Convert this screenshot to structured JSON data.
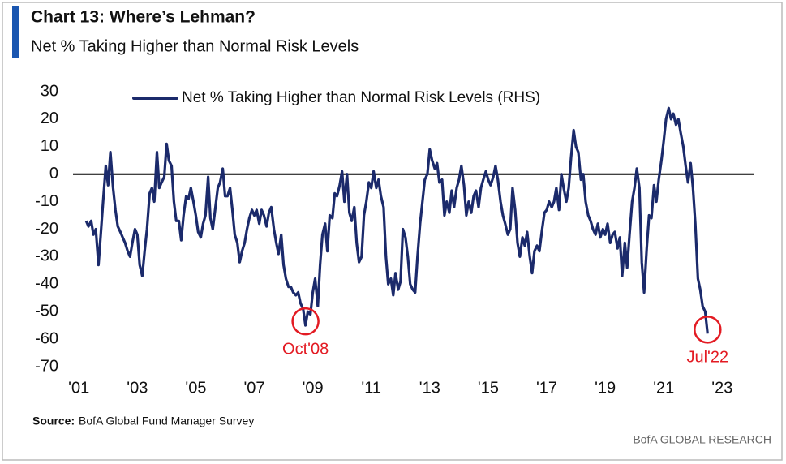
{
  "chart_data": {
    "type": "line",
    "title": "Chart 13: Where’s Lehman?",
    "subtitle": "Net % Taking Higher than Normal Risk Levels",
    "source_label": "Source:",
    "source": "BofA Global Fund Manager Survey",
    "credit": "BofA GLOBAL RESEARCH",
    "xlim": [
      2000.8,
      2024.1
    ],
    "ylim": [
      -70,
      30
    ],
    "yticks": [
      30,
      20,
      10,
      0,
      -10,
      -20,
      -30,
      -40,
      -50,
      -60,
      -70
    ],
    "xticks": [
      {
        "value": 2001,
        "label": "'01"
      },
      {
        "value": 2003,
        "label": "'03"
      },
      {
        "value": 2005,
        "label": "'05"
      },
      {
        "value": 2007,
        "label": "'07"
      },
      {
        "value": 2009,
        "label": "'09"
      },
      {
        "value": 2011,
        "label": "'11"
      },
      {
        "value": 2013,
        "label": "'13"
      },
      {
        "value": 2015,
        "label": "'15"
      },
      {
        "value": 2017,
        "label": "'17"
      },
      {
        "value": 2019,
        "label": "'19"
      },
      {
        "value": 2021,
        "label": "'21"
      },
      {
        "value": 2023,
        "label": "'23"
      }
    ],
    "reference_line": 0,
    "legend": "top-left",
    "x": [
      2001.25,
      2001.33,
      2001.42,
      2001.5,
      2001.58,
      2001.67,
      2001.75,
      2001.83,
      2001.92,
      2002,
      2002.08,
      2002.17,
      2002.25,
      2002.33,
      2002.42,
      2002.5,
      2002.58,
      2002.67,
      2002.75,
      2002.83,
      2002.92,
      2003,
      2003.08,
      2003.17,
      2003.25,
      2003.33,
      2003.42,
      2003.5,
      2003.58,
      2003.67,
      2003.75,
      2003.83,
      2003.92,
      2004,
      2004.08,
      2004.17,
      2004.25,
      2004.33,
      2004.42,
      2004.5,
      2004.58,
      2004.67,
      2004.75,
      2004.83,
      2004.92,
      2005,
      2005.08,
      2005.17,
      2005.25,
      2005.33,
      2005.42,
      2005.5,
      2005.58,
      2005.67,
      2005.75,
      2005.83,
      2005.92,
      2006,
      2006.08,
      2006.17,
      2006.25,
      2006.33,
      2006.42,
      2006.5,
      2006.58,
      2006.67,
      2006.75,
      2006.83,
      2006.92,
      2007,
      2007.08,
      2007.17,
      2007.25,
      2007.33,
      2007.42,
      2007.5,
      2007.58,
      2007.67,
      2007.75,
      2007.83,
      2007.92,
      2008,
      2008.08,
      2008.17,
      2008.25,
      2008.33,
      2008.42,
      2008.5,
      2008.58,
      2008.67,
      2008.75,
      2008.83,
      2008.92,
      2009,
      2009.08,
      2009.17,
      2009.25,
      2009.33,
      2009.42,
      2009.5,
      2009.58,
      2009.67,
      2009.75,
      2009.83,
      2009.92,
      2010,
      2010.08,
      2010.17,
      2010.25,
      2010.33,
      2010.42,
      2010.5,
      2010.58,
      2010.67,
      2010.75,
      2010.83,
      2010.92,
      2011,
      2011.08,
      2011.17,
      2011.25,
      2011.33,
      2011.42,
      2011.5,
      2011.58,
      2011.67,
      2011.75,
      2011.83,
      2011.92,
      2012,
      2012.08,
      2012.17,
      2012.25,
      2012.33,
      2012.42,
      2012.5,
      2012.58,
      2012.67,
      2012.75,
      2012.83,
      2012.92,
      2013,
      2013.08,
      2013.17,
      2013.25,
      2013.33,
      2013.42,
      2013.5,
      2013.58,
      2013.67,
      2013.75,
      2013.83,
      2013.92,
      2014,
      2014.08,
      2014.17,
      2014.25,
      2014.33,
      2014.42,
      2014.5,
      2014.58,
      2014.67,
      2014.75,
      2014.83,
      2014.92,
      2015,
      2015.08,
      2015.17,
      2015.25,
      2015.33,
      2015.42,
      2015.5,
      2015.58,
      2015.67,
      2015.75,
      2015.83,
      2015.92,
      2016,
      2016.08,
      2016.17,
      2016.25,
      2016.33,
      2016.42,
      2016.5,
      2016.58,
      2016.67,
      2016.75,
      2016.83,
      2016.92,
      2017,
      2017.08,
      2017.17,
      2017.25,
      2017.33,
      2017.42,
      2017.5,
      2017.58,
      2017.67,
      2017.75,
      2017.83,
      2017.92,
      2018,
      2018.08,
      2018.17,
      2018.25,
      2018.33,
      2018.42,
      2018.5,
      2018.58,
      2018.67,
      2018.75,
      2018.83,
      2018.92,
      2019,
      2019.08,
      2019.17,
      2019.25,
      2019.33,
      2019.42,
      2019.5,
      2019.58,
      2019.67,
      2019.75,
      2019.83,
      2019.92,
      2020,
      2020.08,
      2020.17,
      2020.25,
      2020.33,
      2020.42,
      2020.5,
      2020.58,
      2020.67,
      2020.75,
      2020.83,
      2020.92,
      2021,
      2021.08,
      2021.17,
      2021.25,
      2021.33,
      2021.42,
      2021.5,
      2021.58,
      2021.67,
      2021.75,
      2021.83,
      2021.92,
      2022,
      2022.08,
      2022.17,
      2022.25,
      2022.33,
      2022.42,
      2022.5
    ],
    "series": [
      {
        "name": "Net % Taking Higher than Normal Risk Levels (RHS)",
        "color": "#1b2a6b",
        "values": [
          -17,
          -19,
          -17,
          -22,
          -20,
          -33,
          -22,
          -10,
          3,
          -4,
          8,
          -5,
          -13,
          -19,
          -21,
          -23,
          -25,
          -28,
          -30,
          -25,
          -20,
          -22,
          -33,
          -37,
          -28,
          -20,
          -7,
          -5,
          -10,
          8,
          -5,
          -3,
          -1,
          11,
          5,
          3,
          -10,
          -17,
          -17,
          -24,
          -15,
          -8,
          -9,
          -5,
          -10,
          -15,
          -21,
          -23,
          -18,
          -15,
          -1,
          -16,
          -20,
          -12,
          -5,
          -3,
          2,
          -8,
          -8,
          -5,
          -13,
          -22,
          -25,
          -32,
          -28,
          -25,
          -20,
          -16,
          -13,
          -15,
          -13,
          -18,
          -13,
          -15,
          -19,
          -14,
          -12,
          -20,
          -25,
          -29,
          -22,
          -33,
          -38,
          -41,
          -41,
          -43,
          -44,
          -43,
          -47,
          -49,
          -55,
          -50,
          -51,
          -43,
          -38,
          -48,
          -33,
          -22,
          -18,
          -28,
          -15,
          -16,
          -7,
          -8,
          -4,
          1,
          -10,
          0,
          -14,
          -17,
          -12,
          -25,
          -32,
          -30,
          -15,
          -10,
          -3,
          -5,
          1,
          -5,
          -2,
          -8,
          -12,
          -30,
          -40,
          -38,
          -44,
          -36,
          -42,
          -39,
          -20,
          -23,
          -30,
          -40,
          -42,
          -43,
          -30,
          -18,
          -10,
          -2,
          0,
          9,
          5,
          2,
          4,
          -3,
          -2,
          -15,
          -10,
          -14,
          -6,
          -12,
          -5,
          -2,
          3,
          -4,
          -15,
          -10,
          -14,
          -8,
          -6,
          -12,
          -5,
          -2,
          1,
          -2,
          -4,
          -1,
          3,
          -2,
          -10,
          -15,
          -18,
          -22,
          -20,
          -5,
          -13,
          -25,
          -30,
          -23,
          -26,
          -21,
          -30,
          -36,
          -28,
          -26,
          -28,
          -21,
          -14,
          -13,
          -10,
          -12,
          -10,
          -5,
          -13,
          0,
          -5,
          -10,
          -5,
          6,
          16,
          10,
          8,
          -2,
          0,
          -10,
          -15,
          -17,
          -20,
          -22,
          -18,
          -23,
          -20,
          -22,
          -18,
          -25,
          -22,
          -21,
          -27,
          -23,
          -37,
          -25,
          -34,
          -22,
          -10,
          -5,
          2,
          -5,
          -32,
          -43,
          -27,
          -15,
          -16,
          -4,
          -10,
          -2,
          5,
          12,
          20,
          24,
          20,
          22,
          18,
          20,
          15,
          10,
          3,
          -3,
          4,
          -5,
          -18,
          -38,
          -42,
          -48,
          -50,
          -58
        ]
      }
    ],
    "annotations": [
      {
        "label": "Oct'08",
        "x": 2008.75,
        "y": -55,
        "color": "#e31b23"
      },
      {
        "label": "Jul'22",
        "x": 2022.5,
        "y": -58,
        "color": "#e31b23"
      }
    ]
  }
}
